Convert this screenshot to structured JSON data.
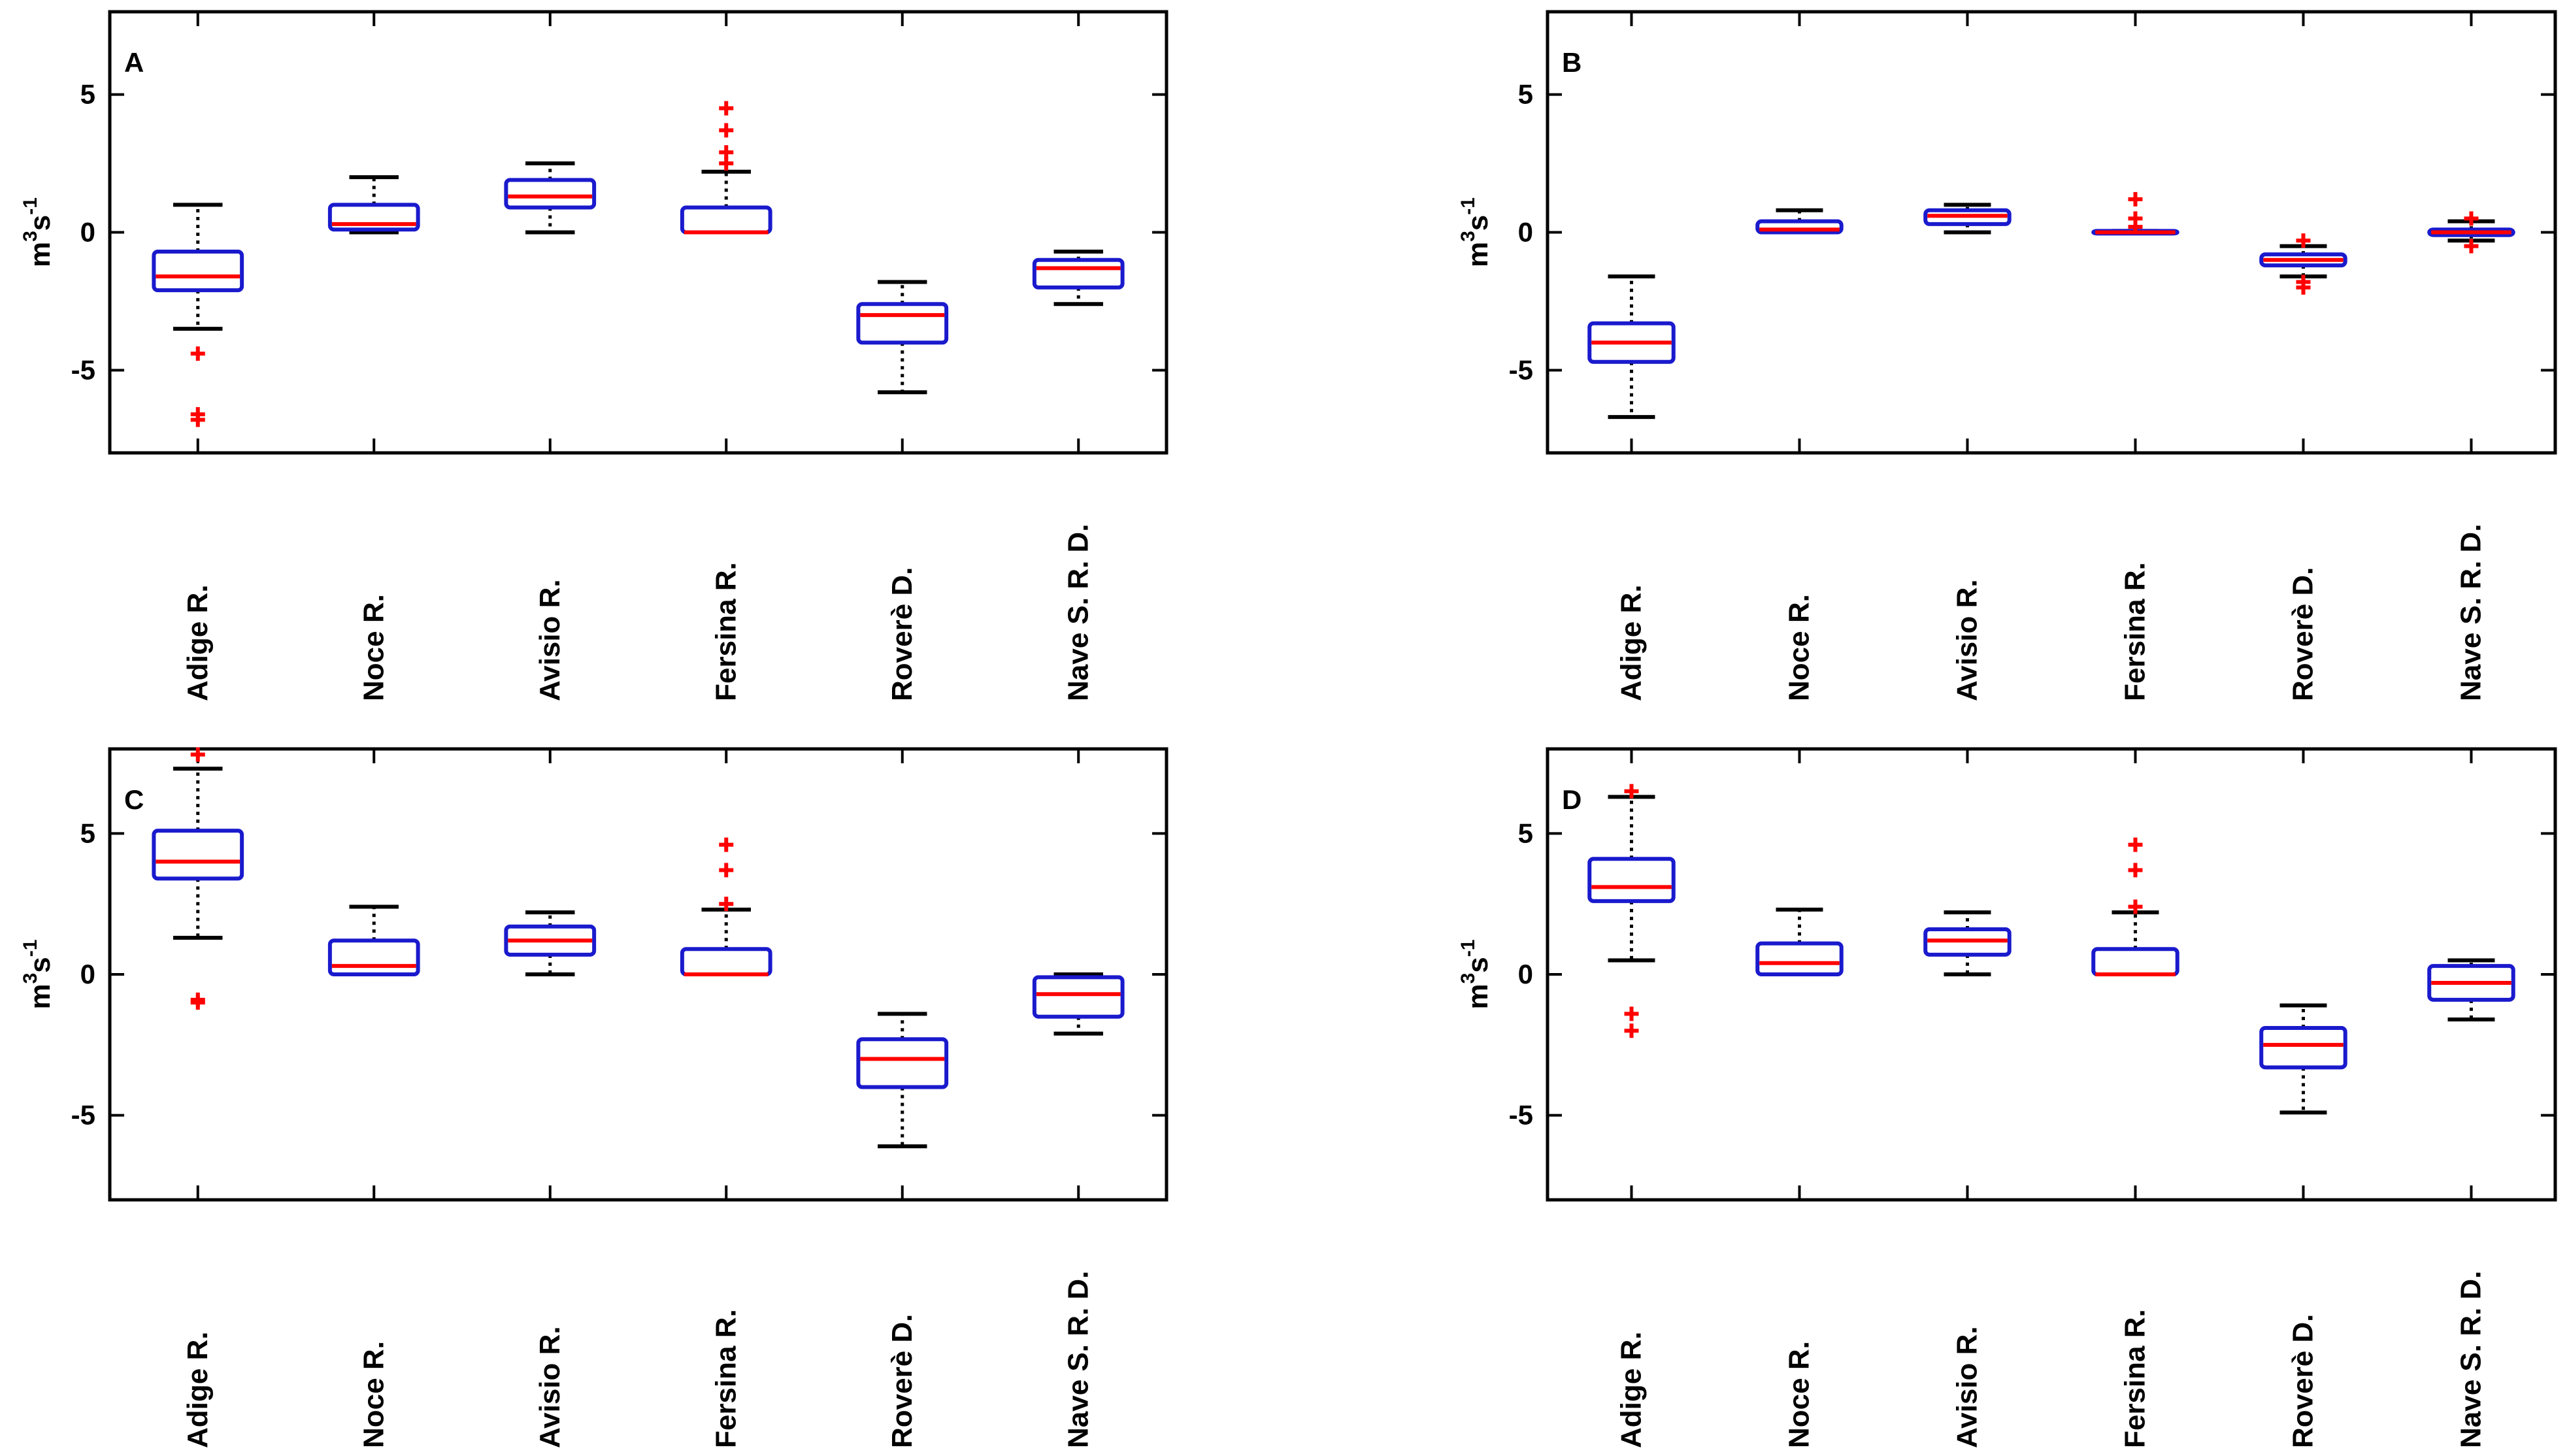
{
  "chart_data": [
    {
      "type": "boxplot",
      "panel_label": "A",
      "ylabel_base": "m",
      "ylabel_sup1": "3",
      "ylabel_mid": "s",
      "ylabel_sup2": "-1",
      "ylim": [
        -8,
        8
      ],
      "yticks": [
        5,
        0,
        -5
      ],
      "ytick_labels": [
        "5",
        "0",
        "-5"
      ],
      "categories": [
        "Adige R.",
        "Noce R.",
        "Avisio R.",
        "Fersina R.",
        "Roverè D.",
        "Nave S. R. D."
      ],
      "boxes": [
        {
          "q1": -2.1,
          "median": -1.6,
          "q3": -0.7,
          "whisker_low": -3.5,
          "whisker_high": 1.0,
          "outliers": [
            -4.4,
            -6.6,
            -6.8
          ]
        },
        {
          "q1": 0.1,
          "median": 0.3,
          "q3": 1.0,
          "whisker_low": 0.0,
          "whisker_high": 2.0,
          "outliers": []
        },
        {
          "q1": 0.9,
          "median": 1.3,
          "q3": 1.9,
          "whisker_low": 0.0,
          "whisker_high": 2.5,
          "outliers": []
        },
        {
          "q1": 0.0,
          "median": 0.0,
          "q3": 0.9,
          "whisker_low": 0.0,
          "whisker_high": 2.2,
          "outliers": [
            2.5,
            2.9,
            3.7,
            4.5
          ]
        },
        {
          "q1": -4.0,
          "median": -3.0,
          "q3": -2.6,
          "whisker_low": -5.8,
          "whisker_high": -1.8,
          "outliers": []
        },
        {
          "q1": -2.0,
          "median": -1.3,
          "q3": -1.0,
          "whisker_low": -2.6,
          "whisker_high": -0.7,
          "outliers": []
        }
      ]
    },
    {
      "type": "boxplot",
      "panel_label": "B",
      "ylabel_base": "m",
      "ylabel_sup1": "3",
      "ylabel_mid": "s",
      "ylabel_sup2": "-1",
      "ylim": [
        -8,
        8
      ],
      "yticks": [
        5,
        0,
        -5
      ],
      "ytick_labels": [
        "5",
        "0",
        "-5"
      ],
      "categories": [
        "Adige R.",
        "Noce R.",
        "Avisio R.",
        "Fersina R.",
        "Roverè D.",
        "Nave S. R. D."
      ],
      "boxes": [
        {
          "q1": -4.7,
          "median": -4.0,
          "q3": -3.3,
          "whisker_low": -6.7,
          "whisker_high": -1.6,
          "outliers": []
        },
        {
          "q1": 0.0,
          "median": 0.1,
          "q3": 0.4,
          "whisker_low": 0.0,
          "whisker_high": 0.8,
          "outliers": []
        },
        {
          "q1": 0.3,
          "median": 0.6,
          "q3": 0.8,
          "whisker_low": 0.0,
          "whisker_high": 1.0,
          "outliers": []
        },
        {
          "q1": 0.0,
          "median": 0.0,
          "q3": 0.05,
          "whisker_low": 0.0,
          "whisker_high": 0.05,
          "outliers": [
            0.2,
            0.5,
            1.2
          ]
        },
        {
          "q1": -1.2,
          "median": -1.0,
          "q3": -0.8,
          "whisker_low": -1.6,
          "whisker_high": -0.5,
          "outliers": [
            -0.3,
            -1.8,
            -2.0
          ]
        },
        {
          "q1": -0.1,
          "median": 0.0,
          "q3": 0.1,
          "whisker_low": -0.3,
          "whisker_high": 0.4,
          "outliers": [
            0.5,
            -0.5
          ]
        }
      ]
    },
    {
      "type": "boxplot",
      "panel_label": "C",
      "ylabel_base": "m",
      "ylabel_sup1": "3",
      "ylabel_mid": "s",
      "ylabel_sup2": "-1",
      "ylim": [
        -8,
        8
      ],
      "yticks": [
        5,
        0,
        -5
      ],
      "ytick_labels": [
        "5",
        "0",
        "-5"
      ],
      "categories": [
        "Adige R.",
        "Noce R.",
        "Avisio R.",
        "Fersina R.",
        "Roverè D.",
        "Nave S. R. D."
      ],
      "boxes": [
        {
          "q1": 3.4,
          "median": 4.0,
          "q3": 5.1,
          "whisker_low": 1.3,
          "whisker_high": 7.3,
          "outliers": [
            7.8,
            -0.9,
            -1.0
          ]
        },
        {
          "q1": 0.0,
          "median": 0.3,
          "q3": 1.2,
          "whisker_low": 0.0,
          "whisker_high": 2.4,
          "outliers": []
        },
        {
          "q1": 0.7,
          "median": 1.2,
          "q3": 1.7,
          "whisker_low": 0.0,
          "whisker_high": 2.2,
          "outliers": []
        },
        {
          "q1": 0.0,
          "median": 0.0,
          "q3": 0.9,
          "whisker_low": 0.0,
          "whisker_high": 2.3,
          "outliers": [
            2.5,
            3.7,
            4.6
          ]
        },
        {
          "q1": -4.0,
          "median": -3.0,
          "q3": -2.3,
          "whisker_low": -6.1,
          "whisker_high": -1.4,
          "outliers": []
        },
        {
          "q1": -1.5,
          "median": -0.7,
          "q3": -0.1,
          "whisker_low": -2.1,
          "whisker_high": 0.0,
          "outliers": []
        }
      ]
    },
    {
      "type": "boxplot",
      "panel_label": "D",
      "ylabel_base": "m",
      "ylabel_sup1": "3",
      "ylabel_mid": "s",
      "ylabel_sup2": "-1",
      "ylim": [
        -8,
        8
      ],
      "yticks": [
        5,
        0,
        -5
      ],
      "ytick_labels": [
        "5",
        "0",
        "-5"
      ],
      "categories": [
        "Adige R.",
        "Noce R.",
        "Avisio R.",
        "Fersina R.",
        "Roverè D.",
        "Nave S. R. D."
      ],
      "boxes": [
        {
          "q1": 2.6,
          "median": 3.1,
          "q3": 4.1,
          "whisker_low": 0.5,
          "whisker_high": 6.3,
          "outliers": [
            6.5,
            -1.4,
            -2.0
          ]
        },
        {
          "q1": 0.0,
          "median": 0.4,
          "q3": 1.1,
          "whisker_low": 0.0,
          "whisker_high": 2.3,
          "outliers": []
        },
        {
          "q1": 0.7,
          "median": 1.2,
          "q3": 1.6,
          "whisker_low": 0.0,
          "whisker_high": 2.2,
          "outliers": []
        },
        {
          "q1": 0.0,
          "median": 0.0,
          "q3": 0.9,
          "whisker_low": 0.0,
          "whisker_high": 2.2,
          "outliers": [
            2.4,
            3.7,
            4.6
          ]
        },
        {
          "q1": -3.3,
          "median": -2.5,
          "q3": -1.9,
          "whisker_low": -4.9,
          "whisker_high": -1.1,
          "outliers": []
        },
        {
          "q1": -0.9,
          "median": -0.3,
          "q3": 0.3,
          "whisker_low": -1.6,
          "whisker_high": 0.5,
          "outliers": []
        }
      ]
    }
  ],
  "colors": {
    "box": "#1a1acd",
    "median": "#ff0000",
    "outlier": "#ff0000",
    "whisker": "#000000",
    "axes": "#000000"
  }
}
